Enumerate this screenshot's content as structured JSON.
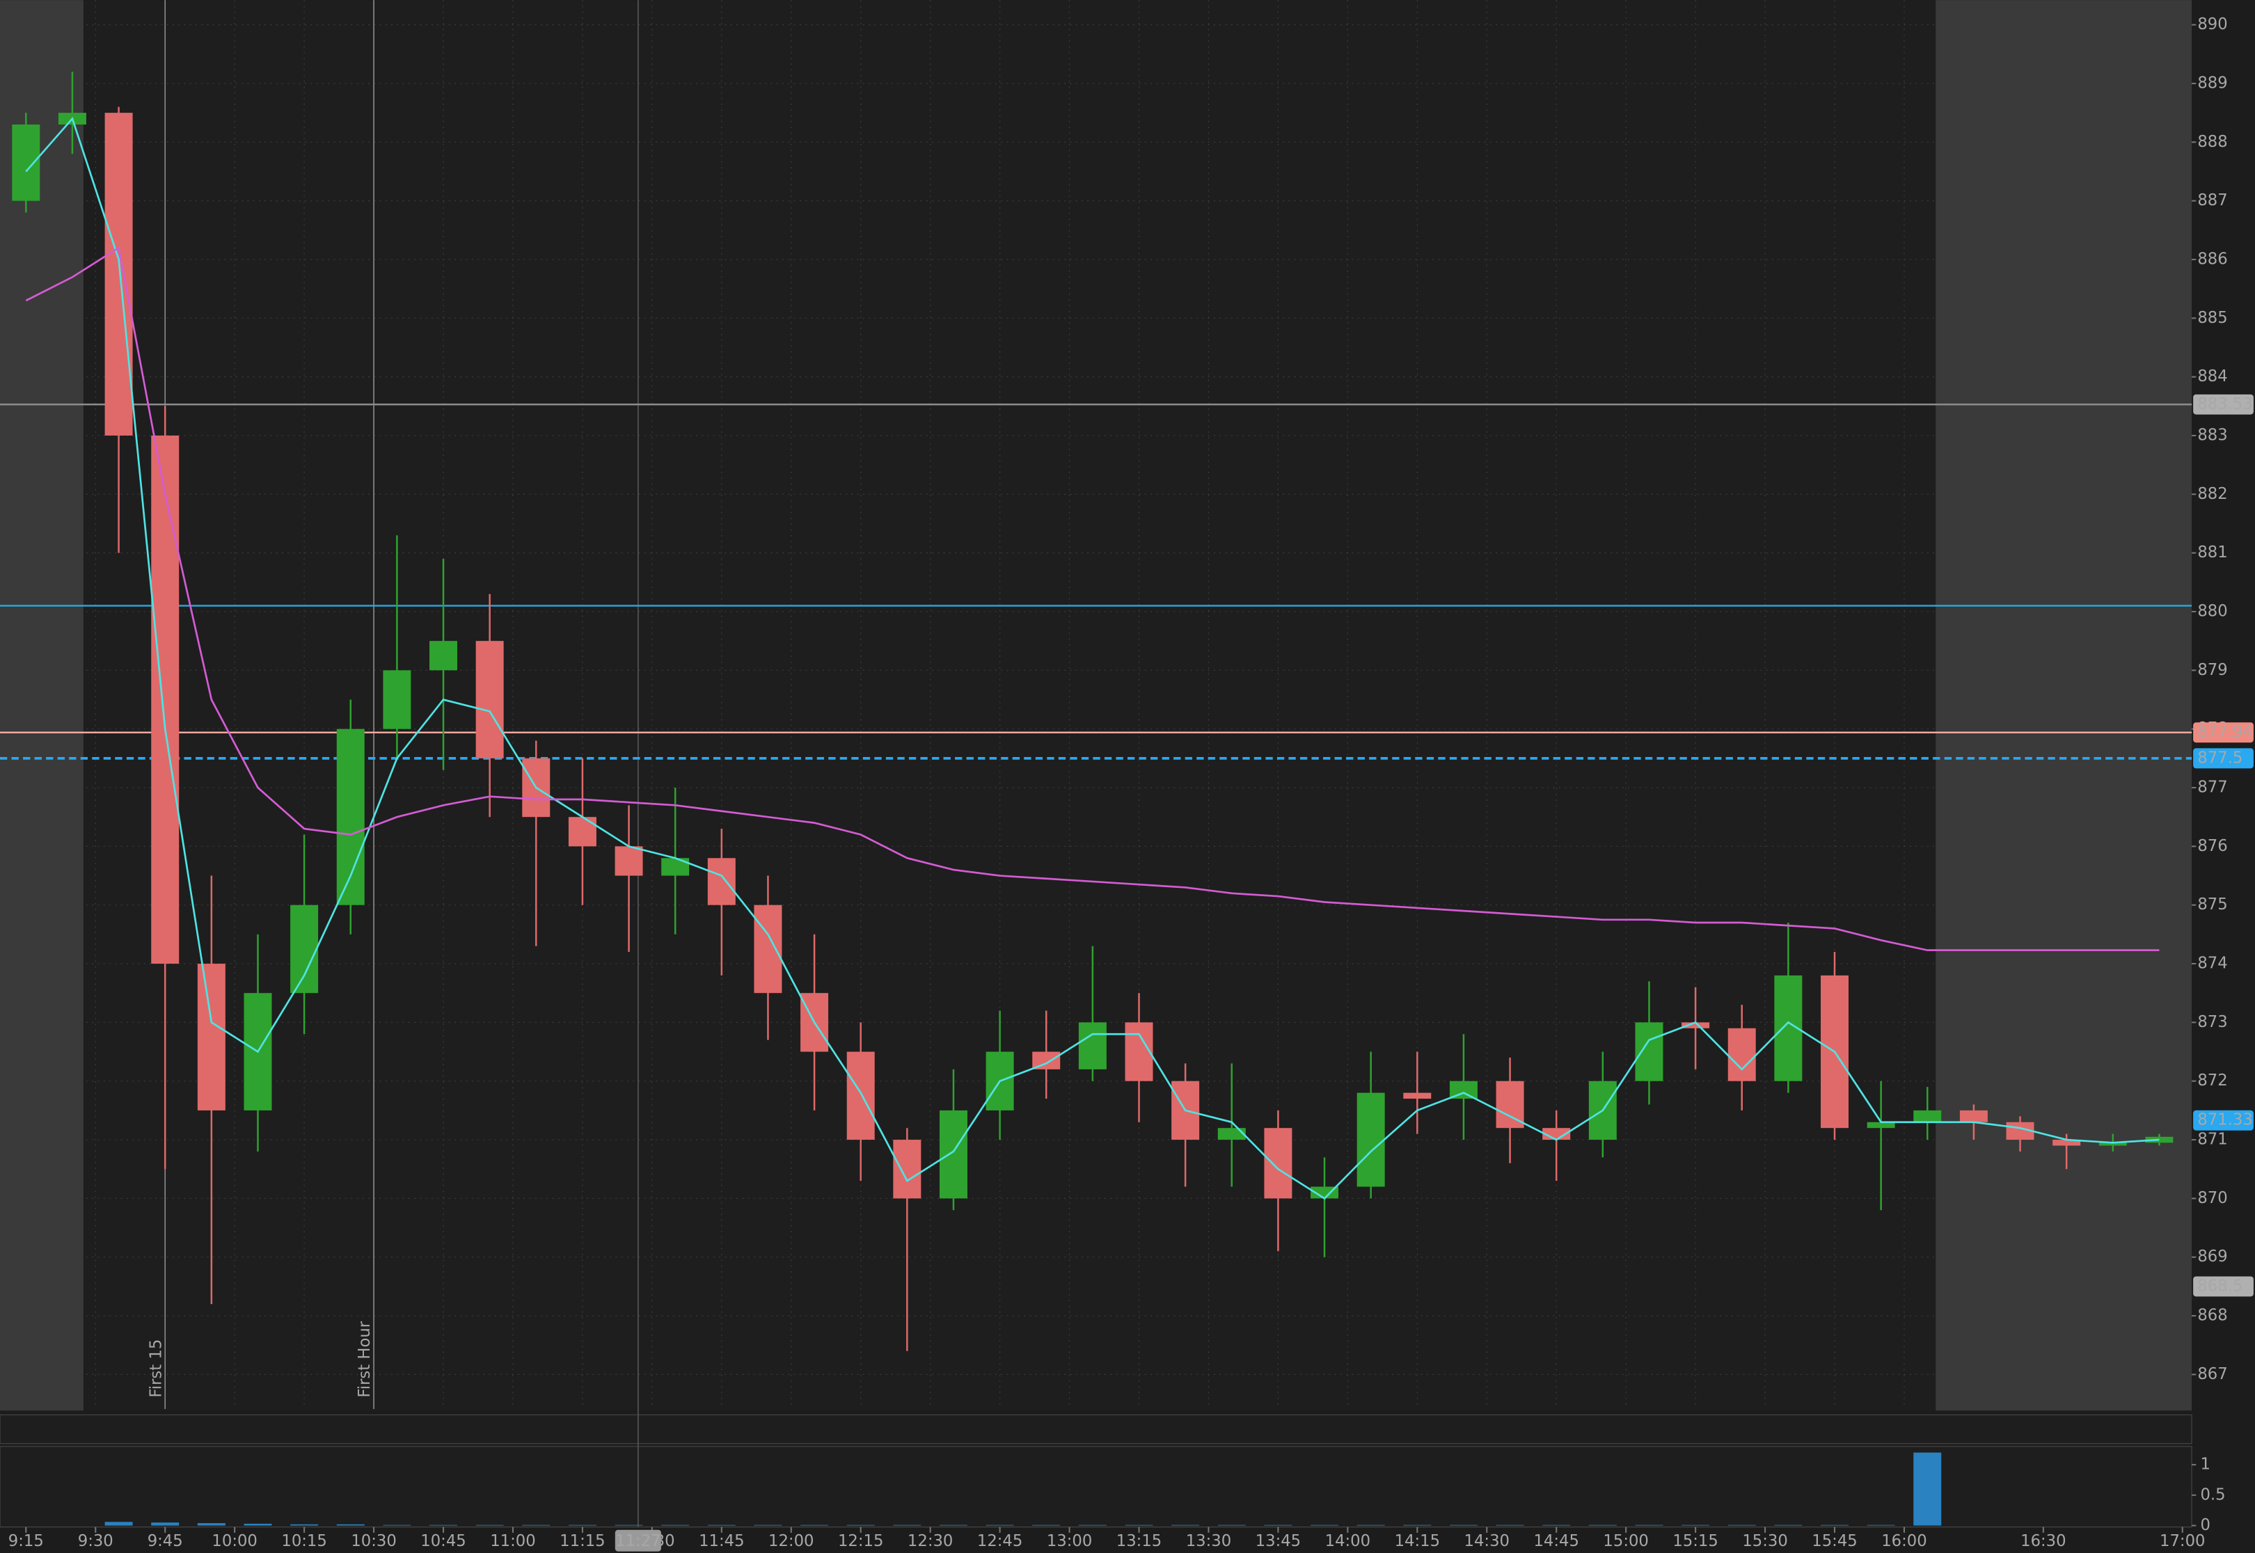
{
  "chart_data": {
    "type": "candlestick",
    "xlim": [
      549.4,
      1022
    ],
    "ylim": [
      866.41,
      890.42
    ],
    "xticks": [
      {
        "value": 555,
        "label": "9:15"
      },
      {
        "value": 570,
        "label": "9:30"
      },
      {
        "value": 585,
        "label": "9:45"
      },
      {
        "value": 600,
        "label": "10:00"
      },
      {
        "value": 615,
        "label": "10:15"
      },
      {
        "value": 630,
        "label": "10:30"
      },
      {
        "value": 645,
        "label": "10:45"
      },
      {
        "value": 660,
        "label": "11:00"
      },
      {
        "value": 675,
        "label": "11:15"
      },
      {
        "value": 690,
        "label": "11:30"
      },
      {
        "value": 705,
        "label": "11:45"
      },
      {
        "value": 720,
        "label": "12:00"
      },
      {
        "value": 735,
        "label": "12:15"
      },
      {
        "value": 750,
        "label": "12:30"
      },
      {
        "value": 765,
        "label": "12:45"
      },
      {
        "value": 780,
        "label": "13:00"
      },
      {
        "value": 795,
        "label": "13:15"
      },
      {
        "value": 810,
        "label": "13:30"
      },
      {
        "value": 825,
        "label": "13:45"
      },
      {
        "value": 840,
        "label": "14:00"
      },
      {
        "value": 855,
        "label": "14:15"
      },
      {
        "value": 870,
        "label": "14:30"
      },
      {
        "value": 885,
        "label": "14:45"
      },
      {
        "value": 900,
        "label": "15:00"
      },
      {
        "value": 915,
        "label": "15:15"
      },
      {
        "value": 930,
        "label": "15:30"
      },
      {
        "value": 945,
        "label": "15:45"
      },
      {
        "value": 960,
        "label": "16:00"
      },
      {
        "value": 990,
        "label": "16:30"
      },
      {
        "value": 1020,
        "label": "17:00"
      }
    ],
    "yticks": [
      867,
      868,
      869,
      870,
      871,
      872,
      873,
      874,
      875,
      876,
      877,
      878,
      879,
      880,
      881,
      882,
      883,
      884,
      885,
      886,
      887,
      888,
      889,
      890
    ],
    "grid": true,
    "up_color": "#2fa32f",
    "down_color": "#e06a6a",
    "candles": {
      "x": [
        555,
        565,
        575,
        585,
        595,
        605,
        615,
        625,
        635,
        645,
        655,
        665,
        675,
        685,
        695,
        705,
        715,
        725,
        735,
        745,
        755,
        765,
        775,
        785,
        795,
        805,
        815,
        825,
        835,
        845,
        855,
        865,
        875,
        885,
        895,
        905,
        915,
        925,
        935,
        945,
        955,
        965,
        975,
        985,
        995,
        1005,
        1015
      ],
      "open": [
        887,
        888.3,
        888.5,
        883,
        874,
        871.5,
        873.5,
        875,
        878,
        879,
        879.5,
        877.5,
        876.5,
        876,
        875.5,
        875.8,
        875,
        873.5,
        872.5,
        871,
        870,
        871.5,
        872.5,
        872.2,
        873,
        872,
        871,
        871.2,
        870,
        870.2,
        871.8,
        871.7,
        872,
        871.2,
        871,
        872,
        873,
        872.9,
        872,
        873.8,
        871.2,
        871.3,
        871.5,
        871.3,
        871,
        870.9,
        870.95
      ],
      "high": [
        888.5,
        889.2,
        888.6,
        883.5,
        875.5,
        874.5,
        876.2,
        878.5,
        881.3,
        880.9,
        880.3,
        877.8,
        877.5,
        876.7,
        877,
        876.3,
        875.5,
        874.5,
        873,
        871.2,
        872.2,
        873.2,
        873.2,
        874.3,
        873.5,
        872.3,
        872.3,
        871.5,
        870.7,
        872.5,
        872.5,
        872.8,
        872.4,
        871.5,
        872.5,
        873.7,
        873.6,
        873.3,
        874.7,
        874.2,
        872,
        871.9,
        871.6,
        871.4,
        871.1,
        871.1,
        871.1
      ],
      "low": [
        886.8,
        887.8,
        881,
        870.5,
        868.2,
        870.8,
        872.8,
        874.5,
        877.5,
        877.3,
        876.5,
        874.3,
        875,
        874.2,
        874.5,
        873.8,
        872.7,
        871.5,
        870.3,
        867.4,
        869.8,
        871,
        871.7,
        872,
        871.3,
        870.2,
        870.2,
        869.1,
        869,
        870,
        871.1,
        871,
        870.6,
        870.3,
        870.7,
        871.6,
        872.2,
        871.5,
        871.8,
        871,
        869.8,
        871,
        871,
        870.8,
        870.5,
        870.8,
        870.9
      ],
      "close": [
        888.3,
        888.5,
        883,
        874,
        871.5,
        873.5,
        875,
        878,
        879,
        879.5,
        877.5,
        876.5,
        876,
        875.5,
        875.8,
        875,
        873.5,
        872.5,
        871,
        870,
        871.5,
        872.5,
        872.2,
        873,
        872,
        871,
        871.2,
        870,
        870.2,
        871.8,
        871.7,
        872,
        871.2,
        871,
        872,
        873,
        872.9,
        872,
        873.8,
        871.2,
        871.3,
        871.5,
        871.3,
        871,
        870.9,
        870.95,
        871.05
      ]
    },
    "overlays": [
      {
        "color": "#4fe3e3",
        "values": [
          887.5,
          888.4,
          886,
          878,
          873,
          872.5,
          873.8,
          875.5,
          877.5,
          878.5,
          878.3,
          877,
          876.5,
          876,
          875.8,
          875.5,
          874.5,
          873,
          871.8,
          870.3,
          870.8,
          872,
          872.3,
          872.8,
          872.8,
          871.5,
          871.3,
          870.5,
          870,
          870.8,
          871.5,
          871.8,
          871.4,
          871,
          871.5,
          872.7,
          873,
          872.2,
          873,
          872.5,
          871.3,
          871.3,
          871.3,
          871.2,
          871,
          870.95,
          871
        ]
      },
      {
        "color": "#d45cd4",
        "values": [
          885.3,
          885.7,
          886.2,
          882,
          878.5,
          877,
          876.3,
          876.2,
          876.5,
          876.7,
          876.85,
          876.8,
          876.8,
          876.75,
          876.7,
          876.6,
          876.5,
          876.4,
          876.2,
          875.8,
          875.6,
          875.5,
          875.45,
          875.4,
          875.35,
          875.3,
          875.2,
          875.15,
          875.05,
          875,
          874.95,
          874.9,
          874.85,
          874.8,
          874.75,
          874.75,
          874.7,
          874.7,
          874.65,
          874.6,
          874.4,
          874.23,
          874.23,
          874.23,
          874.23,
          874.23,
          874.23
        ]
      }
    ],
    "levels": [
      {
        "value": 883.53,
        "color": "#8c8c8c",
        "tagged": true,
        "tag_color": "#b0b0b0"
      },
      {
        "value": 880.1,
        "color": "#29a9e6",
        "tagged": false
      },
      {
        "value": 877.94,
        "color": "#f0a8a0",
        "tagged": true,
        "tag_color": "#f08a80"
      },
      {
        "value": 877.5,
        "color": "#2aa8f0",
        "tagged": true,
        "tag_color": "#2aa8f0",
        "style": "dashed"
      }
    ],
    "price_tags": [
      {
        "value": 871.33,
        "color": "#2aa8f0"
      },
      {
        "value": 868.5,
        "color": "#b0b0b0"
      }
    ],
    "markers": [
      {
        "x": 585,
        "label": "First 15"
      },
      {
        "x": 630,
        "label": "First Hour"
      }
    ],
    "crosshair": {
      "x": 687,
      "label": "11:27"
    },
    "volume": {
      "color": "#2a82c0",
      "ylim": [
        0,
        1.3
      ],
      "yticks": [
        0,
        0.5,
        1
      ],
      "values": [
        0,
        0,
        0.06,
        0.05,
        0.04,
        0.03,
        0.02,
        0.02,
        0.01,
        0.01,
        0.01,
        0.01,
        0.01,
        0.01,
        0.01,
        0.01,
        0.01,
        0.01,
        0.01,
        0.01,
        0.01,
        0.01,
        0.01,
        0.01,
        0.01,
        0.01,
        0.01,
        0.01,
        0.01,
        0.01,
        0.01,
        0.01,
        0.01,
        0.01,
        0.01,
        0.01,
        0.01,
        0.01,
        0.01,
        0.01,
        0.01,
        1.2,
        0,
        0,
        0,
        0,
        0
      ]
    }
  }
}
